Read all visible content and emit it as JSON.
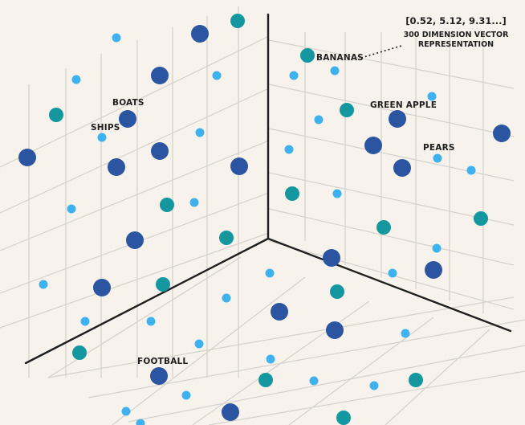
{
  "colors": {
    "background": "#f7f3ec",
    "grid": "#d3d1cc",
    "axis": "#1f1f1f",
    "dark_blue": "#2b55a1",
    "teal": "#1597a0",
    "light_blue": "#3fb1ef"
  },
  "vector_note": {
    "values": "[0.52, 5.12, 9.31...]",
    "line1": "300 DIMENSION VECTOR",
    "line2": "REPRESENTATION"
  },
  "word_labels": {
    "bananas": "BANANAS",
    "green_apple": "GREEN APPLE",
    "pears": "PEARS",
    "boats": "BOATS",
    "ships": "SHIPS",
    "football": "FOOTBALL"
  }
}
